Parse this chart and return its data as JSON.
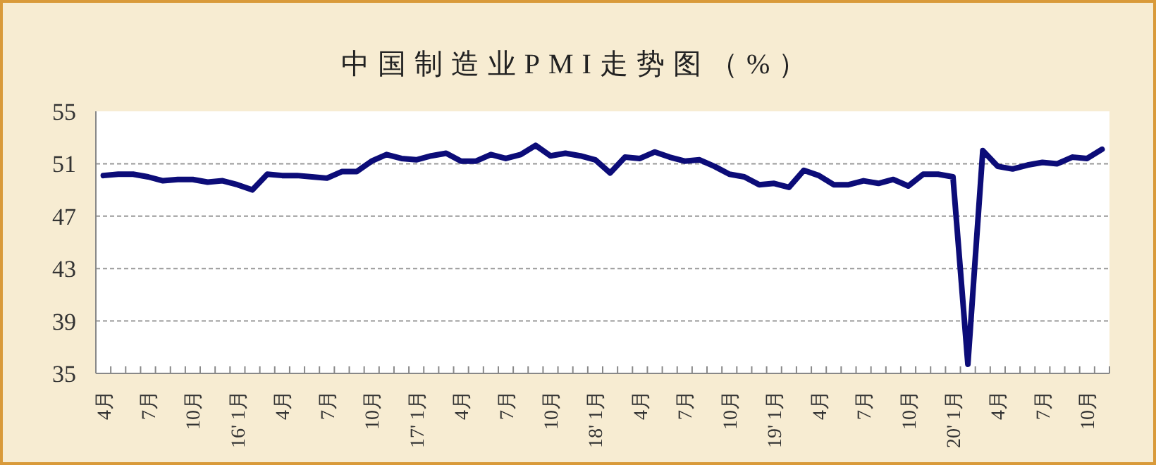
{
  "chart_data": {
    "type": "line",
    "title": "中国制造业PMI走势图（%）",
    "categories": [
      "4月",
      null,
      null,
      "7月",
      null,
      null,
      "10月",
      null,
      null,
      "16' 1月",
      null,
      null,
      "4月",
      null,
      null,
      "7月",
      null,
      null,
      "10月",
      null,
      null,
      "17' 1月",
      null,
      null,
      "4月",
      null,
      null,
      "7月",
      null,
      null,
      "10月",
      null,
      null,
      "18' 1月",
      null,
      null,
      "4月",
      null,
      null,
      "7月",
      null,
      null,
      "10月",
      null,
      null,
      "19' 1月",
      null,
      null,
      "4月",
      null,
      null,
      "7月",
      null,
      null,
      "10月",
      null,
      null,
      "20' 1月",
      null,
      null,
      "4月",
      null,
      null,
      "7月",
      null,
      null,
      "10月",
      null
    ],
    "series": [
      {
        "color": "#0c0c78",
        "values": [
          50.1,
          50.2,
          50.2,
          50.0,
          49.7,
          49.8,
          49.8,
          49.6,
          49.7,
          49.4,
          49.0,
          50.2,
          50.1,
          50.1,
          50.0,
          49.9,
          50.4,
          50.4,
          51.2,
          51.7,
          51.4,
          51.3,
          51.6,
          51.8,
          51.2,
          51.2,
          51.7,
          51.4,
          51.7,
          52.4,
          51.6,
          51.8,
          51.6,
          51.3,
          50.3,
          51.5,
          51.4,
          51.9,
          51.5,
          51.2,
          51.3,
          50.8,
          50.2,
          50.0,
          49.4,
          49.5,
          49.2,
          50.5,
          50.1,
          49.4,
          49.4,
          49.7,
          49.5,
          49.8,
          49.3,
          50.2,
          50.2,
          50.0,
          35.7,
          52.0,
          50.8,
          50.6,
          50.9,
          51.1,
          51.0,
          51.5,
          51.4,
          52.1
        ]
      }
    ],
    "ylim": [
      35,
      55
    ],
    "yticks": [
      35,
      39,
      43,
      47,
      51,
      55
    ],
    "grid": "y",
    "marker": "none",
    "line_style": "solid"
  }
}
